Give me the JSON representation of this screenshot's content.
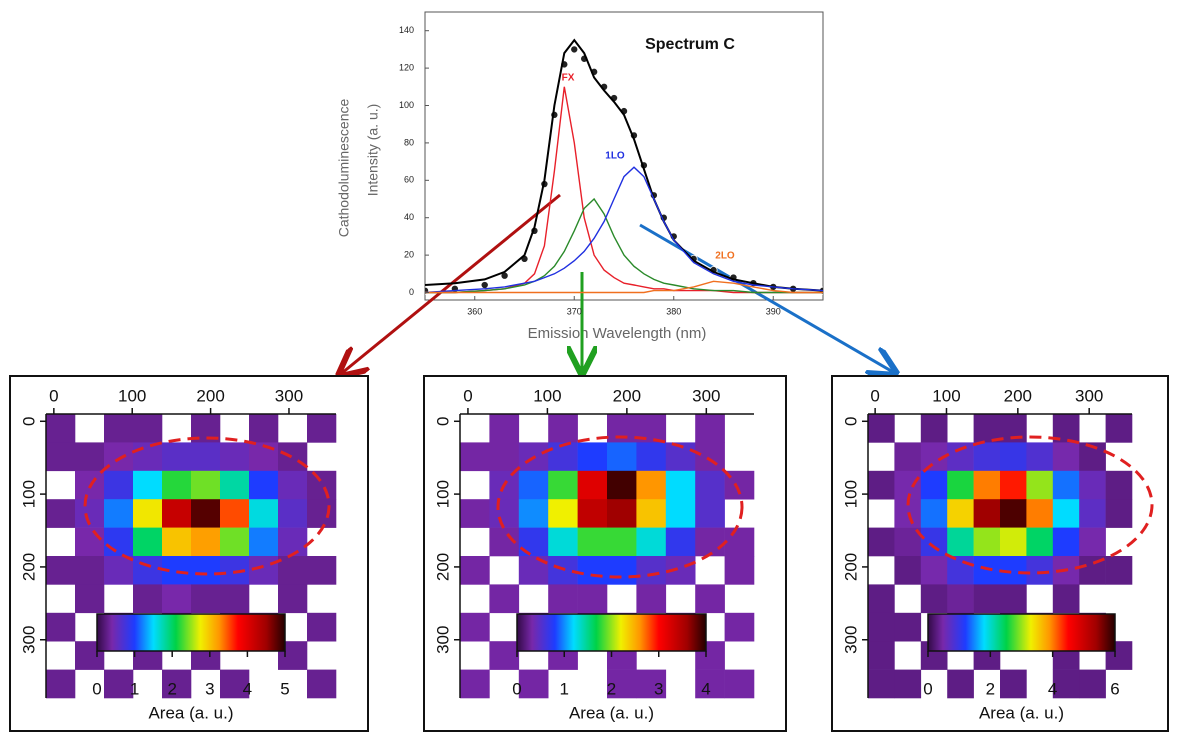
{
  "chart_data": [
    {
      "type": "line",
      "title": "Spectrum C",
      "y_label": [
        "Cathodoluminescence",
        "Intensity (a. u.)"
      ],
      "x_label": "Emission Wavelength (nm)",
      "xlim": [
        355,
        395
      ],
      "xticks": [
        360,
        370,
        380,
        390
      ],
      "ylim": [
        -4,
        150
      ],
      "yticks": [
        0,
        20,
        40,
        60,
        80,
        100,
        120,
        140
      ],
      "x": [
        355,
        358,
        361,
        363,
        365,
        366,
        367,
        368,
        369,
        370,
        371,
        372,
        373,
        374,
        375,
        376,
        377,
        378,
        379,
        380,
        382,
        384,
        386,
        388,
        390,
        392,
        395
      ],
      "series": [
        {
          "mode": "markers",
          "color": "#222222",
          "values": [
            1,
            2,
            4,
            9,
            18,
            33,
            58,
            95,
            122,
            130,
            125,
            118,
            110,
            104,
            97,
            84,
            68,
            52,
            40,
            30,
            18,
            12,
            8,
            5,
            3,
            2,
            1
          ]
        },
        {
          "mode": "lines",
          "color": "#000000",
          "values": [
            4,
            5,
            7,
            11,
            20,
            35,
            60,
            100,
            128,
            135,
            128,
            115,
            108,
            102,
            95,
            82,
            66,
            50,
            38,
            28,
            17,
            11,
            7,
            5,
            3,
            2,
            1
          ]
        },
        {
          "name": "FX",
          "mode": "lines",
          "color": "#e8202a",
          "values": [
            0,
            0,
            1,
            2,
            5,
            10,
            25,
            65,
            110,
            80,
            40,
            20,
            12,
            8,
            5,
            4,
            3,
            2,
            2,
            1,
            1,
            1,
            0,
            0,
            0,
            0,
            0
          ]
        },
        {
          "mode": "lines",
          "color": "#2a8a2a",
          "values": [
            0,
            0,
            1,
            2,
            4,
            6,
            9,
            14,
            22,
            33,
            45,
            50,
            42,
            30,
            20,
            14,
            10,
            7,
            5,
            4,
            2,
            1,
            1,
            0,
            0,
            0,
            0
          ]
        },
        {
          "name": "1LO",
          "mode": "lines",
          "color": "#2030e0",
          "values": [
            0,
            1,
            2,
            3,
            5,
            6,
            8,
            10,
            13,
            17,
            22,
            29,
            38,
            50,
            62,
            67,
            62,
            50,
            38,
            28,
            16,
            10,
            6,
            4,
            3,
            2,
            1
          ]
        },
        {
          "name": "2LO",
          "mode": "lines",
          "color": "#f07020",
          "values": [
            0,
            0,
            0,
            0,
            0,
            0,
            0,
            0,
            0,
            0,
            0,
            0,
            0,
            0,
            0,
            0,
            0,
            1,
            1,
            1,
            3,
            6,
            5,
            3,
            1,
            0,
            0
          ]
        }
      ]
    },
    {
      "type": "heatmap",
      "xlim": [
        -10,
        360
      ],
      "ylim": [
        -10,
        380
      ],
      "xticks": [
        0,
        100,
        200,
        300
      ],
      "yticks": [
        0,
        100,
        200,
        300
      ],
      "colorbar": {
        "label": "Area (a. u.)",
        "clim": [
          0,
          5
        ],
        "ticks": [
          0,
          1,
          2,
          3,
          4,
          5
        ]
      },
      "z": [
        [
          0.3,
          null,
          0.3,
          0.3,
          null,
          0.3,
          null,
          0.3,
          null,
          0.3
        ],
        [
          0.3,
          0.3,
          0.4,
          0.5,
          0.6,
          0.6,
          0.5,
          0.4,
          0.3,
          null
        ],
        [
          null,
          0.4,
          0.8,
          1.5,
          2.2,
          2.4,
          1.8,
          1,
          0.5,
          0.3
        ],
        [
          0.3,
          0.5,
          1.2,
          2.8,
          4.2,
          4.8,
          3.5,
          1.6,
          0.6,
          0.3
        ],
        [
          null,
          0.4,
          0.9,
          2,
          3,
          3.2,
          2.4,
          1.2,
          0.5,
          null
        ],
        [
          0.3,
          0.3,
          0.5,
          0.8,
          1,
          1,
          0.8,
          0.5,
          0.3,
          0.3
        ],
        [
          null,
          0.3,
          null,
          0.3,
          0.4,
          0.3,
          0.3,
          null,
          0.3,
          null
        ],
        [
          0.3,
          null,
          0.3,
          null,
          0.3,
          null,
          0.3,
          0.3,
          null,
          0.3
        ],
        [
          null,
          0.3,
          null,
          0.3,
          null,
          0.3,
          null,
          null,
          0.3,
          null
        ],
        [
          0.3,
          null,
          0.3,
          null,
          0.3,
          null,
          0.3,
          null,
          null,
          0.3
        ]
      ]
    },
    {
      "type": "heatmap",
      "xlim": [
        -10,
        360
      ],
      "ylim": [
        -10,
        380
      ],
      "xticks": [
        0,
        100,
        200,
        300
      ],
      "yticks": [
        0,
        100,
        200,
        300
      ],
      "colorbar": {
        "label": "Area (a. u.)",
        "clim": [
          0,
          4
        ],
        "ticks": [
          0,
          1,
          2,
          3,
          4
        ]
      },
      "z": [
        [
          null,
          0.3,
          null,
          0.3,
          null,
          0.3,
          0.3,
          null,
          0.3,
          null
        ],
        [
          0.3,
          0.3,
          0.4,
          0.6,
          0.8,
          0.9,
          0.7,
          0.5,
          0.3,
          null
        ],
        [
          null,
          0.4,
          0.9,
          1.8,
          3.2,
          3.9,
          2.6,
          1.2,
          0.5,
          0.3
        ],
        [
          0.3,
          0.4,
          1,
          2.2,
          3.4,
          3.6,
          2.4,
          1.2,
          0.5,
          null
        ],
        [
          null,
          0.3,
          0.7,
          1.3,
          1.8,
          1.8,
          1.3,
          0.7,
          0.3,
          0.3
        ],
        [
          0.3,
          null,
          0.4,
          0.6,
          0.8,
          0.8,
          0.5,
          0.4,
          null,
          0.3
        ],
        [
          null,
          0.3,
          null,
          0.3,
          0.3,
          null,
          0.3,
          null,
          0.3,
          null
        ],
        [
          0.3,
          null,
          0.3,
          null,
          0.3,
          0.3,
          null,
          0.3,
          null,
          0.3
        ],
        [
          null,
          0.3,
          null,
          0.3,
          null,
          0.3,
          null,
          null,
          0.3,
          null
        ],
        [
          0.3,
          null,
          0.3,
          null,
          null,
          0.3,
          0.3,
          null,
          0.3,
          0.3
        ]
      ]
    },
    {
      "type": "heatmap",
      "xlim": [
        -10,
        360
      ],
      "ylim": [
        -10,
        380
      ],
      "xticks": [
        0,
        100,
        200,
        300
      ],
      "yticks": [
        0,
        100,
        200,
        300
      ],
      "colorbar": {
        "label": "Area (a. u.)",
        "clim": [
          0,
          6
        ],
        "ticks": [
          0,
          2,
          4,
          6
        ]
      },
      "z": [
        [
          0.3,
          null,
          0.3,
          null,
          0.3,
          0.3,
          null,
          0.3,
          null,
          0.3
        ],
        [
          null,
          0.4,
          0.5,
          0.7,
          0.9,
          1,
          0.8,
          0.5,
          0.3,
          null
        ],
        [
          0.3,
          0.5,
          1.2,
          2.6,
          4,
          4.4,
          3,
          1.4,
          0.6,
          0.3
        ],
        [
          null,
          0.5,
          1.4,
          3.5,
          5.4,
          5.8,
          4,
          1.8,
          0.7,
          0.3
        ],
        [
          0.3,
          0.4,
          1,
          2.2,
          3,
          3.2,
          2.4,
          1.2,
          0.5,
          null
        ],
        [
          null,
          0.3,
          0.5,
          0.9,
          1.2,
          1.2,
          0.9,
          0.5,
          0.3,
          0.3
        ],
        [
          0.3,
          null,
          0.3,
          0.4,
          0.3,
          0.3,
          null,
          0.3,
          null,
          null
        ],
        [
          0.3,
          0.3,
          null,
          0.3,
          null,
          0.3,
          0.3,
          null,
          0.3,
          null
        ],
        [
          0.3,
          null,
          0.3,
          null,
          0.3,
          null,
          null,
          0.3,
          null,
          0.3
        ],
        [
          0.3,
          0.3,
          null,
          0.3,
          null,
          0.3,
          null,
          0.3,
          0.3,
          null
        ]
      ]
    }
  ]
}
